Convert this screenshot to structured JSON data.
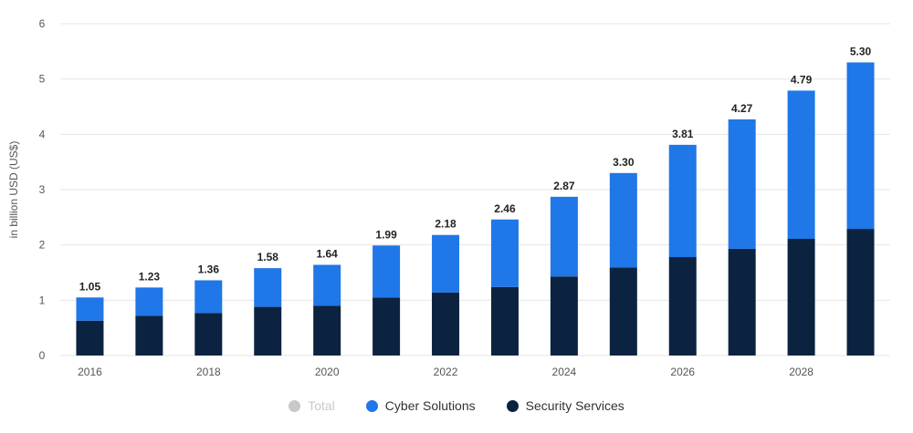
{
  "chart_data": {
    "type": "bar",
    "stacked": true,
    "categories": [
      "2016",
      "2017",
      "2018",
      "2019",
      "2020",
      "2021",
      "2022",
      "2023",
      "2024",
      "2025",
      "2026",
      "2027",
      "2028",
      "2029"
    ],
    "x_tick_labels": [
      "2016",
      "2018",
      "2020",
      "2022",
      "2024",
      "2026",
      "2028"
    ],
    "series": [
      {
        "name": "Total",
        "values": [
          1.05,
          1.23,
          1.36,
          1.58,
          1.64,
          1.99,
          2.18,
          2.46,
          2.87,
          3.3,
          3.81,
          4.27,
          4.79,
          5.3
        ],
        "color": "#c8c8c8",
        "visible": false
      },
      {
        "name": "Cyber Solutions",
        "values": [
          0.42,
          0.51,
          0.59,
          0.7,
          0.74,
          0.94,
          1.04,
          1.22,
          1.44,
          1.71,
          2.03,
          2.34,
          2.68,
          3.01
        ],
        "color": "#1f77e8",
        "visible": true
      },
      {
        "name": "Security Services",
        "values": [
          0.63,
          0.72,
          0.77,
          0.88,
          0.9,
          1.05,
          1.14,
          1.24,
          1.43,
          1.59,
          1.78,
          1.93,
          2.11,
          2.29
        ],
        "color": "#0b2341",
        "visible": true
      }
    ],
    "data_labels": [
      "1.05",
      "1.23",
      "1.36",
      "1.58",
      "1.64",
      "1.99",
      "2.18",
      "2.46",
      "2.87",
      "3.30",
      "3.81",
      "4.27",
      "4.79",
      "5.30"
    ],
    "ylabel": "in billion USD (US$)",
    "ylim": [
      0,
      6
    ],
    "yticks": [
      0,
      1,
      2,
      3,
      4,
      5,
      6
    ],
    "grid": true,
    "legend_position": "bottom"
  },
  "legend": {
    "items": [
      {
        "label": "Total",
        "color": "#c8c8c8"
      },
      {
        "label": "Cyber Solutions",
        "color": "#1f77e8"
      },
      {
        "label": "Security Services",
        "color": "#0b2341"
      }
    ]
  }
}
